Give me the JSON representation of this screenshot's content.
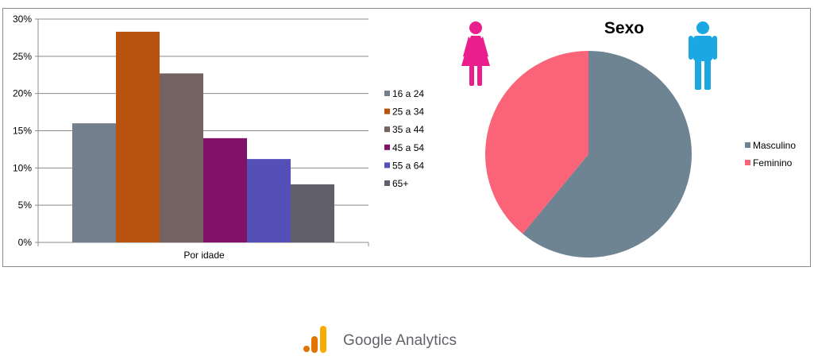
{
  "chart_data": [
    {
      "type": "bar",
      "xlabel": "Por idade",
      "ylim": [
        0,
        30
      ],
      "y_ticks": [
        "0%",
        "5%",
        "10%",
        "15%",
        "20%",
        "25%",
        "30%"
      ],
      "grid": true,
      "legend_position": "right",
      "series": [
        {
          "name": "16 a 24",
          "values": [
            16
          ],
          "color": "#737f8a"
        },
        {
          "name": "25 a 34",
          "values": [
            28.3
          ],
          "color": "#b8540f"
        },
        {
          "name": "35 a 44",
          "values": [
            22.7
          ],
          "color": "#726360"
        },
        {
          "name": "45 a 54",
          "values": [
            14
          ],
          "color": "#811268"
        },
        {
          "name": "55 a 64",
          "values": [
            11.2
          ],
          "color": "#5450b8"
        },
        {
          "name": "65+",
          "values": [
            7.8
          ],
          "color": "#625f6c"
        }
      ]
    },
    {
      "type": "pie",
      "title": "Sexo",
      "legend_position": "right",
      "slices": [
        {
          "name": "Masculino",
          "value": 61,
          "color": "#6f8493"
        },
        {
          "name": "Feminino",
          "value": 39,
          "color": "#fb6478"
        }
      ]
    }
  ],
  "icons": {
    "female": {
      "name": "female-figure-icon",
      "color": "#ea1e8c"
    },
    "male": {
      "name": "male-figure-icon",
      "color": "#1aa7e2"
    }
  },
  "footer": {
    "logo_name": "google-analytics-logo-icon",
    "logo_text": "Google Analytics"
  }
}
